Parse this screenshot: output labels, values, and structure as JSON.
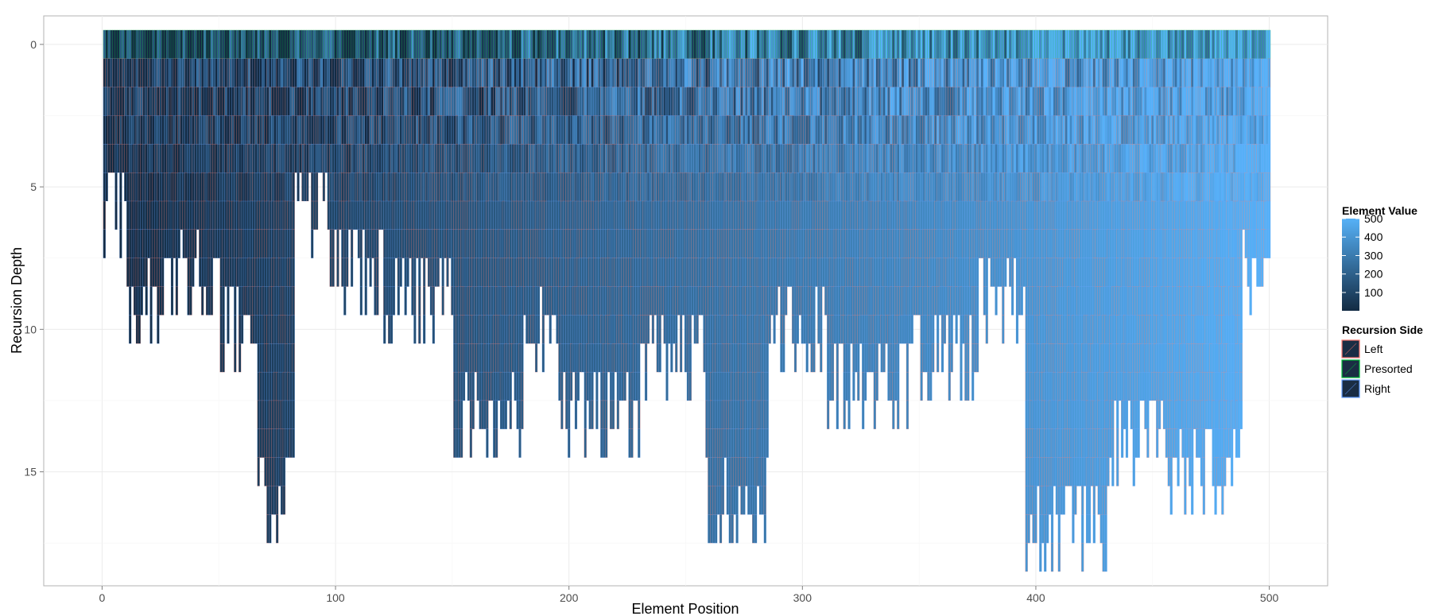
{
  "chart_data": {
    "type": "heatmap",
    "title": "",
    "xlabel": "Element Position",
    "ylabel": "Recursion Depth",
    "xlim": [
      -25,
      525
    ],
    "ylim": [
      19,
      -1
    ],
    "y_reversed": true,
    "x_ticks": [
      0,
      100,
      200,
      300,
      400,
      500
    ],
    "x_tick_labels": [
      "0",
      "100",
      "200",
      "300",
      "400",
      "500"
    ],
    "y_ticks": [
      0,
      5,
      10,
      15
    ],
    "y_tick_labels": [
      "0",
      "5",
      "10",
      "15"
    ],
    "grid": true,
    "n_elements": 500,
    "max_depth": 18,
    "cell_depth_profile_note": "each column's bars run from depth 0 down to the depth shown",
    "column_max_depth": [
      {
        "x_from": 1,
        "x_to": 10,
        "depth": 7
      },
      {
        "x_from": 11,
        "x_to": 30,
        "depth": 10
      },
      {
        "x_from": 31,
        "x_to": 50,
        "depth": 9
      },
      {
        "x_from": 51,
        "x_to": 66,
        "depth": 11
      },
      {
        "x_from": 67,
        "x_to": 82,
        "depth": 17
      },
      {
        "x_from": 83,
        "x_to": 97,
        "depth": 7
      },
      {
        "x_from": 98,
        "x_to": 120,
        "depth": 9
      },
      {
        "x_from": 121,
        "x_to": 150,
        "depth": 10
      },
      {
        "x_from": 151,
        "x_to": 180,
        "depth": 14
      },
      {
        "x_from": 181,
        "x_to": 195,
        "depth": 11
      },
      {
        "x_from": 196,
        "x_to": 230,
        "depth": 14
      },
      {
        "x_from": 231,
        "x_to": 258,
        "depth": 12
      },
      {
        "x_from": 259,
        "x_to": 285,
        "depth": 17
      },
      {
        "x_from": 286,
        "x_to": 310,
        "depth": 11
      },
      {
        "x_from": 311,
        "x_to": 345,
        "depth": 13
      },
      {
        "x_from": 346,
        "x_to": 375,
        "depth": 12
      },
      {
        "x_from": 376,
        "x_to": 395,
        "depth": 10
      },
      {
        "x_from": 396,
        "x_to": 430,
        "depth": 18
      },
      {
        "x_from": 431,
        "x_to": 455,
        "depth": 15
      },
      {
        "x_from": 456,
        "x_to": 488,
        "depth": 16
      },
      {
        "x_from": 489,
        "x_to": 500,
        "depth": 9
      }
    ],
    "legend": {
      "placement": "right",
      "color_scale": {
        "title": "Element Value",
        "min": 1,
        "max": 500,
        "breaks": [
          500,
          400,
          300,
          200,
          100
        ],
        "break_labels": [
          "500",
          "400",
          "300",
          "200",
          "100"
        ],
        "low_color": "#132B43",
        "high_color": "#56B1F7"
      },
      "outline": {
        "title": "Recursion Side",
        "entries": [
          {
            "label": "Left",
            "color": "#F8766D"
          },
          {
            "label": "Presorted",
            "color": "#00BA38"
          },
          {
            "label": "Right",
            "color": "#619CFF"
          }
        ]
      }
    }
  }
}
